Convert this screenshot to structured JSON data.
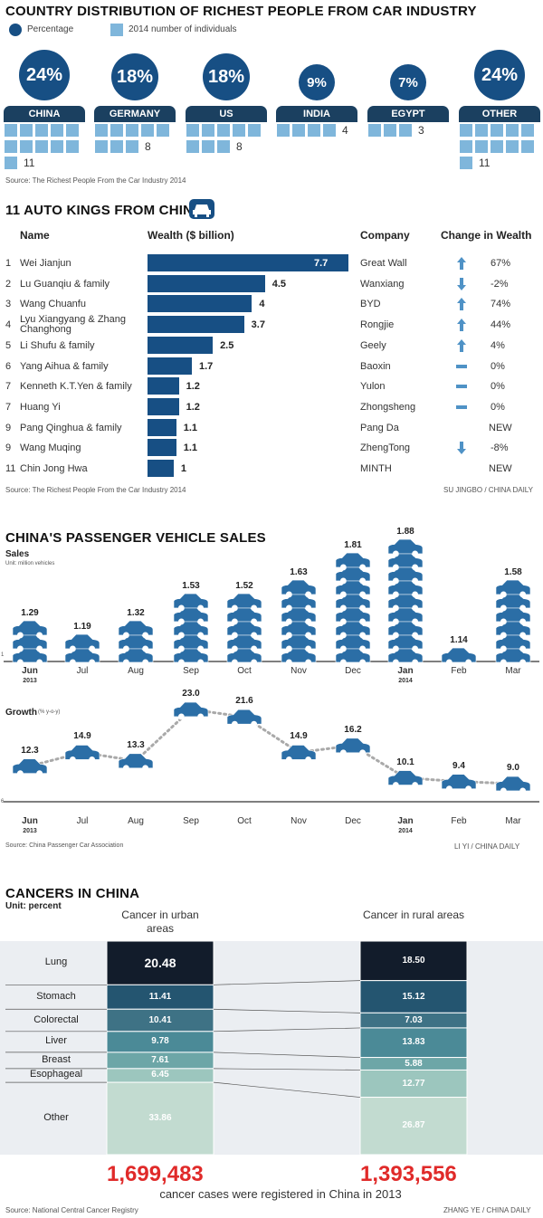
{
  "section1": {
    "title": "COUNTRY DISTRIBUTION OF RICHEST PEOPLE FROM CAR INDUSTRY",
    "legend_percentage": "Percentage",
    "legend_number": "2014 number of individuals",
    "countries": [
      {
        "name": "CHINA",
        "pct": "24%",
        "count": "11",
        "n": 11
      },
      {
        "name": "GERMANY",
        "pct": "18%",
        "count": "8",
        "n": 8
      },
      {
        "name": "US",
        "pct": "18%",
        "count": "8",
        "n": 8
      },
      {
        "name": "INDIA",
        "pct": "9%",
        "count": "4",
        "n": 4
      },
      {
        "name": "EGYPT",
        "pct": "7%",
        "count": "3",
        "n": 3
      },
      {
        "name": "OTHER",
        "pct": "24%",
        "count": "11",
        "n": 11
      }
    ],
    "source": "Source: The Richest People From the Car Industry 2014"
  },
  "section2": {
    "title": "11 AUTO KINGS FROM CHINA",
    "headers": {
      "name": "Name",
      "wealth": "Wealth ($ billion)",
      "company": "Company",
      "change": "Change in Wealth"
    },
    "rows": [
      {
        "rank": "1",
        "name": "Wei Jianjun",
        "wealth": "7.7",
        "w": 7.7,
        "company": "Great Wall",
        "change": "67%",
        "dir": "up"
      },
      {
        "rank": "2",
        "name": "Lu Guanqiu & family",
        "wealth": "4.5",
        "w": 4.5,
        "company": "Wanxiang",
        "change": "-2%",
        "dir": "down"
      },
      {
        "rank": "3",
        "name": "Wang Chuanfu",
        "wealth": "4",
        "w": 4,
        "company": "BYD",
        "change": "74%",
        "dir": "up"
      },
      {
        "rank": "4",
        "name": "Lyu Xiangyang & Zhang Changhong",
        "wealth": "3.7",
        "w": 3.7,
        "company": "Rongjie",
        "change": "44%",
        "dir": "up"
      },
      {
        "rank": "5",
        "name": "Li Shufu & family",
        "wealth": "2.5",
        "w": 2.5,
        "company": "Geely",
        "change": "4%",
        "dir": "up"
      },
      {
        "rank": "6",
        "name": "Yang Aihua & family",
        "wealth": "1.7",
        "w": 1.7,
        "company": "Baoxin",
        "change": "0%",
        "dir": "flat"
      },
      {
        "rank": "7",
        "name": "Kenneth K.T.Yen & family",
        "wealth": "1.2",
        "w": 1.2,
        "company": "Yulon",
        "change": "0%",
        "dir": "flat"
      },
      {
        "rank": "7",
        "name": "Huang Yi",
        "wealth": "1.2",
        "w": 1.2,
        "company": "Zhongsheng",
        "change": "0%",
        "dir": "flat"
      },
      {
        "rank": "9",
        "name": "Pang Qinghua & family",
        "wealth": "1.1",
        "w": 1.1,
        "company": "Pang Da",
        "change": "NEW",
        "dir": "none"
      },
      {
        "rank": "9",
        "name": "Wang Muqing",
        "wealth": "1.1",
        "w": 1.1,
        "company": "ZhengTong",
        "change": "-8%",
        "dir": "down"
      },
      {
        "rank": "11",
        "name": "Chin Jong Hwa",
        "wealth": "1",
        "w": 1,
        "company": "MINTH",
        "change": "NEW",
        "dir": "none"
      }
    ],
    "source": "Source: The Richest People From the Car Industry 2014",
    "credit": "SU JINGBO / CHINA DAILY"
  },
  "section3": {
    "title": "CHINA'S PASSENGER VEHICLE SALES",
    "sales_label": "Sales",
    "sales_unit": "Unit: million vehicles",
    "growth_label": "Growth",
    "growth_unit": "(% y-o-y)",
    "axis_tick_sales": "1",
    "axis_tick_growth": "6",
    "months": [
      {
        "m": "Jun",
        "year": "2013",
        "bold": true
      },
      {
        "m": "Jul",
        "year": "",
        "bold": false
      },
      {
        "m": "Aug",
        "year": "",
        "bold": false
      },
      {
        "m": "Sep",
        "year": "",
        "bold": false
      },
      {
        "m": "Oct",
        "year": "",
        "bold": false
      },
      {
        "m": "Nov",
        "year": "",
        "bold": false
      },
      {
        "m": "Dec",
        "year": "",
        "bold": false
      },
      {
        "m": "Jan",
        "year": "2014",
        "bold": true
      },
      {
        "m": "Feb",
        "year": "",
        "bold": false
      },
      {
        "m": "Mar",
        "year": "",
        "bold": false
      }
    ],
    "source": "Source: China Passenger Car Association",
    "credit": "LI YI / CHINA DAILY"
  },
  "section4": {
    "title": "CANCERS IN CHINA",
    "unit": "Unit: percent",
    "urban_header": "Cancer in urban areas",
    "rural_header": "Cancer in rural areas",
    "urban_total": "1,699,483",
    "rural_total": "1,393,556",
    "caption": "cancer cases were registered in China in 2013",
    "source": "Source: National Central Cancer Registry",
    "credit": "ZHANG YE / CHINA DAILY"
  },
  "chart_data": [
    {
      "type": "bar",
      "title": "COUNTRY DISTRIBUTION OF RICHEST PEOPLE FROM CAR INDUSTRY",
      "categories": [
        "CHINA",
        "GERMANY",
        "US",
        "INDIA",
        "EGYPT",
        "OTHER"
      ],
      "series": [
        {
          "name": "Percentage",
          "values": [
            24,
            18,
            18,
            9,
            7,
            24
          ]
        },
        {
          "name": "2014 number of individuals",
          "values": [
            11,
            8,
            8,
            4,
            3,
            11
          ]
        }
      ]
    },
    {
      "type": "bar",
      "title": "11 AUTO KINGS FROM CHINA",
      "xlabel": "Wealth ($ billion)",
      "categories": [
        "Wei Jianjun",
        "Lu Guanqiu & family",
        "Wang Chuanfu",
        "Lyu Xiangyang & Zhang Changhong",
        "Li Shufu & family",
        "Yang Aihua & family",
        "Kenneth K.T.Yen & family",
        "Huang Yi",
        "Pang Qinghua & family",
        "Wang Muqing",
        "Chin Jong Hwa"
      ],
      "values": [
        7.7,
        4.5,
        4,
        3.7,
        2.5,
        1.7,
        1.2,
        1.2,
        1.1,
        1.1,
        1
      ]
    },
    {
      "type": "bar",
      "title": "CHINA'S PASSENGER VEHICLE SALES",
      "ylabel": "Sales",
      "categories": [
        "Jun",
        "Jul",
        "Aug",
        "Sep",
        "Oct",
        "Nov",
        "Dec",
        "Jan",
        "Feb",
        "Mar"
      ],
      "values": [
        1.29,
        1.19,
        1.32,
        1.53,
        1.52,
        1.63,
        1.81,
        1.88,
        1.14,
        1.58
      ]
    },
    {
      "type": "line",
      "ylabel": "Growth",
      "categories": [
        "Jun",
        "Jul",
        "Aug",
        "Sep",
        "Oct",
        "Nov",
        "Dec",
        "Jan",
        "Feb",
        "Mar"
      ],
      "values": [
        12.3,
        14.9,
        13.3,
        23.0,
        21.6,
        14.9,
        16.2,
        10.1,
        9.4,
        9.0
      ]
    },
    {
      "type": "bar",
      "title": "CANCERS IN CHINA",
      "categories": [
        "Lung",
        "Stomach",
        "Colorectal",
        "Liver",
        "Breast",
        "Esophageal",
        "Other"
      ],
      "series": [
        {
          "name": "Cancer in urban areas",
          "values": [
            20.48,
            11.41,
            10.41,
            9.78,
            7.61,
            6.45,
            33.86
          ]
        },
        {
          "name": "Cancer in rural areas",
          "values": [
            18.5,
            15.12,
            7.03,
            13.83,
            5.88,
            12.77,
            26.87
          ]
        }
      ],
      "colors": [
        "#121c2b",
        "#245570",
        "#3e7285",
        "#4b8a97",
        "#6da6a7",
        "#9cc6be",
        "#c2dbd0"
      ]
    }
  ]
}
